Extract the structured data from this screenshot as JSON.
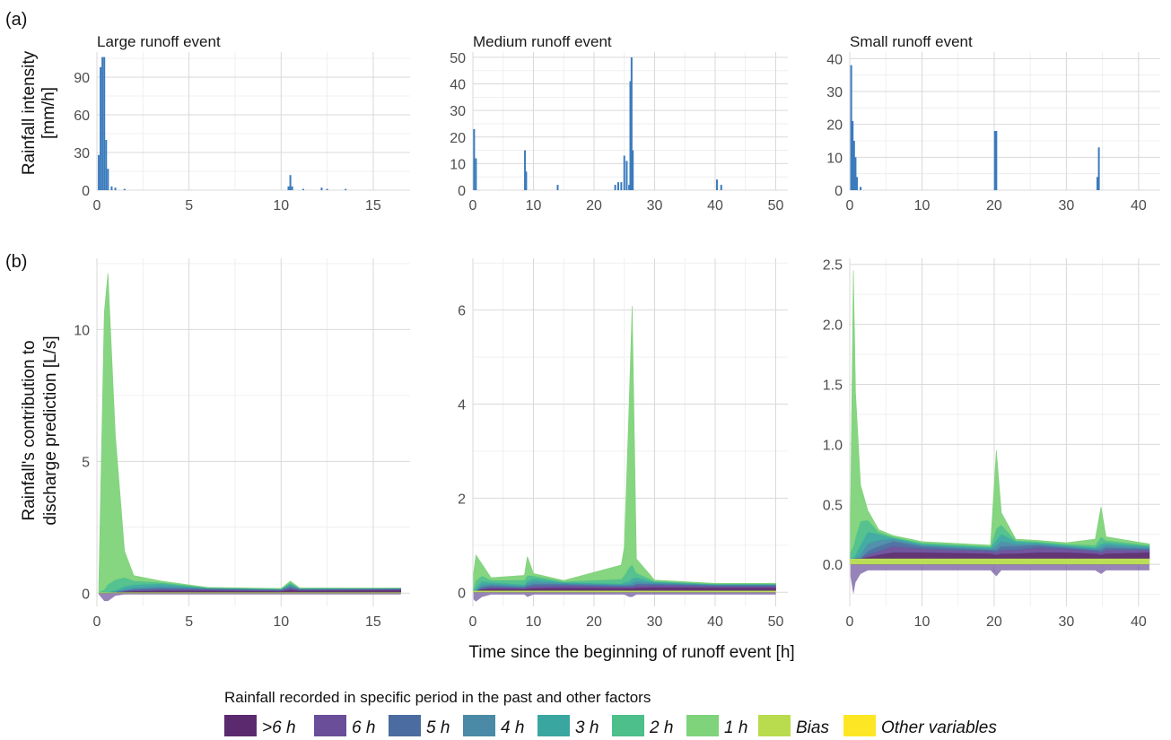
{
  "figure": {
    "tag_a": "(a)",
    "tag_b": "(b)",
    "row_a_ylabel_line1": "Rainfall intensity",
    "row_a_ylabel_line2": "[mm/h]",
    "row_b_ylabel_line1": "Rainfall's contribution to",
    "row_b_ylabel_line2": "discharge prediction [L/s]",
    "shared_xlabel": "Time since the beginning of runoff event [h]"
  },
  "colors": {
    "rain_bar": "#3a7bbd",
    "gt6h": "#5b2a6e",
    "h6": "#6a4e9a",
    "h5": "#4a6ca0",
    "h4": "#4a8aa6",
    "h3": "#3aa6a0",
    "h2": "#4cbf8a",
    "h1": "#7fd37a",
    "bias": "#b8dc4e",
    "other": "#fde725"
  },
  "legend": {
    "title": "Rainfall recorded in specific period in the past and other factors",
    "items": [
      {
        "label": ">6 h",
        "color": "#5b2a6e"
      },
      {
        "label": "6 h",
        "color": "#6a4e9a"
      },
      {
        "label": "5 h",
        "color": "#4a6ca0"
      },
      {
        "label": "4 h",
        "color": "#4a8aa6"
      },
      {
        "label": "3 h",
        "color": "#3aa6a0"
      },
      {
        "label": "2 h",
        "color": "#4cbf8a"
      },
      {
        "label": "1 h",
        "color": "#7fd37a"
      },
      {
        "label": "Bias",
        "color": "#b8dc4e"
      },
      {
        "label": "Other variables",
        "color": "#fde725"
      }
    ]
  },
  "chart_data": [
    {
      "type": "bar",
      "title": "Large runoff event",
      "ylabel": "Rainfall intensity [mm/h]",
      "xlim": [
        0,
        17
      ],
      "ylim": [
        0,
        110
      ],
      "xticks": [
        0,
        5,
        10,
        15
      ],
      "yticks": [
        0,
        30,
        60,
        90
      ],
      "x": [
        0.1,
        0.2,
        0.3,
        0.4,
        0.5,
        0.6,
        0.8,
        1.0,
        1.5,
        10.4,
        10.5,
        10.6,
        11.2,
        12.2,
        12.5,
        13.5
      ],
      "values": [
        28,
        98,
        106,
        106,
        40,
        17,
        3,
        2,
        1,
        3,
        12,
        3,
        1,
        2,
        1,
        1
      ]
    },
    {
      "type": "bar",
      "title": "Medium runoff event",
      "ylabel": "Rainfall intensity [mm/h]",
      "xlim": [
        0,
        52
      ],
      "ylim": [
        0,
        52
      ],
      "xticks": [
        0,
        10,
        20,
        30,
        40,
        50
      ],
      "yticks": [
        0,
        10,
        20,
        30,
        40,
        50
      ],
      "x": [
        0.2,
        0.5,
        8.6,
        8.8,
        14.0,
        23.5,
        24.0,
        24.5,
        25.0,
        25.4,
        25.8,
        26.0,
        26.2,
        26.4,
        40.3,
        41.0
      ],
      "values": [
        23,
        12,
        15,
        7,
        2,
        2,
        3,
        3,
        13,
        11,
        2,
        41,
        50,
        15,
        4,
        2
      ]
    },
    {
      "type": "bar",
      "title": "Small runoff event",
      "ylabel": "Rainfall intensity [mm/h]",
      "xlim": [
        0,
        43
      ],
      "ylim": [
        0,
        42
      ],
      "xticks": [
        0,
        10,
        20,
        30,
        40
      ],
      "yticks": [
        0,
        10,
        20,
        30,
        40
      ],
      "x": [
        0.2,
        0.4,
        0.6,
        0.8,
        1.0,
        1.5,
        20.1,
        20.3,
        34.3,
        34.5
      ],
      "values": [
        38,
        21,
        15,
        10,
        4,
        1,
        18,
        18,
        4,
        13
      ]
    },
    {
      "type": "area",
      "ylabel": "Rainfall's contribution to discharge prediction [L/s]",
      "xlabel": "Time since the beginning of runoff event [h]",
      "xlim": [
        0,
        17
      ],
      "ylim": [
        -0.5,
        12.7
      ],
      "xticks": [
        0,
        5,
        10,
        15
      ],
      "yticks": [
        0,
        5,
        10
      ],
      "x": [
        0.1,
        0.4,
        0.6,
        1.0,
        1.5,
        2.0,
        3.5,
        6.0,
        10.0,
        10.5,
        11.0,
        16.5
      ],
      "series": [
        {
          "name": ">6 h",
          "values": [
            0,
            0,
            0,
            0,
            0.02,
            0.04,
            0.06,
            0.06,
            0.04,
            0.1,
            0.06,
            0.08
          ]
        },
        {
          "name": "6 h",
          "values": [
            0,
            0,
            0,
            0,
            0.02,
            0.04,
            0.05,
            0.04,
            0.03,
            0.05,
            0.03,
            0.03
          ]
        },
        {
          "name": "5 h",
          "values": [
            0,
            0,
            0,
            0,
            0.02,
            0.03,
            0.05,
            0.03,
            0.02,
            0.05,
            0.02,
            0.02
          ]
        },
        {
          "name": "4 h",
          "values": [
            0,
            0,
            0,
            0.02,
            0.05,
            0.05,
            0.06,
            0.02,
            0.02,
            0.06,
            0.02,
            0.01
          ]
        },
        {
          "name": "3 h",
          "values": [
            0,
            0,
            0,
            0.05,
            0.1,
            0.12,
            0.1,
            0.01,
            0.01,
            0.06,
            0.01,
            0.01
          ]
        },
        {
          "name": "2 h",
          "values": [
            0,
            0.1,
            0.3,
            0.4,
            0.35,
            0.15,
            0.05,
            0.01,
            0.01,
            0.05,
            0.01,
            0
          ]
        },
        {
          "name": "1 h",
          "values": [
            0.2,
            10.5,
            11.8,
            5.5,
            1.0,
            0.2,
            0.05,
            0.01,
            0.01,
            0.05,
            0.01,
            0
          ]
        },
        {
          "name": "Bias",
          "values": [
            0.04,
            0.04,
            0.04,
            0.04,
            0.04,
            0.04,
            0.04,
            0.04,
            0.04,
            0.04,
            0.04,
            0.04
          ]
        },
        {
          "name": "Other variables",
          "values": [
            -0.05,
            -0.3,
            -0.3,
            -0.1,
            -0.05,
            -0.05,
            -0.05,
            -0.05,
            -0.05,
            -0.05,
            -0.05,
            -0.05
          ]
        }
      ]
    },
    {
      "type": "area",
      "ylabel": "Rainfall's contribution to discharge prediction [L/s]",
      "xlabel": "Time since the beginning of runoff event [h]",
      "xlim": [
        0,
        52
      ],
      "ylim": [
        -0.3,
        7.1
      ],
      "xticks": [
        0,
        10,
        20,
        30,
        40,
        50
      ],
      "yticks": [
        0,
        2,
        4,
        6
      ],
      "x": [
        0.1,
        0.5,
        1.5,
        3.0,
        8.5,
        9.0,
        10.0,
        15.0,
        24.5,
        25.0,
        25.8,
        26.3,
        27.0,
        30.0,
        40.0,
        50.0
      ],
      "series": [
        {
          "name": ">6 h",
          "values": [
            0,
            0,
            0.02,
            0.04,
            0.03,
            0.04,
            0.05,
            0.06,
            0.05,
            0.05,
            0.05,
            0.05,
            0.06,
            0.07,
            0.06,
            0.06
          ]
        },
        {
          "name": "6 h",
          "values": [
            0,
            0,
            0.02,
            0.03,
            0.02,
            0.03,
            0.04,
            0.04,
            0.03,
            0.03,
            0.03,
            0.03,
            0.04,
            0.04,
            0.03,
            0.03
          ]
        },
        {
          "name": "5 h",
          "values": [
            0,
            0,
            0.03,
            0.03,
            0.02,
            0.03,
            0.04,
            0.03,
            0.02,
            0.02,
            0.02,
            0.02,
            0.04,
            0.03,
            0.02,
            0.02
          ]
        },
        {
          "name": "4 h",
          "values": [
            0,
            0,
            0.04,
            0.03,
            0.02,
            0.04,
            0.05,
            0.02,
            0.02,
            0.02,
            0.03,
            0.05,
            0.05,
            0.02,
            0.01,
            0.01
          ]
        },
        {
          "name": "3 h",
          "values": [
            0,
            0.05,
            0.08,
            0.04,
            0.03,
            0.06,
            0.07,
            0.02,
            0.02,
            0.05,
            0.06,
            0.1,
            0.08,
            0.02,
            0.01,
            0.01
          ]
        },
        {
          "name": "2 h",
          "values": [
            0.05,
            0.15,
            0.12,
            0.05,
            0.1,
            0.12,
            0.06,
            0.02,
            0.1,
            0.15,
            0.3,
            0.3,
            0.1,
            0.02,
            0.01,
            0.01
          ]
        },
        {
          "name": "1 h",
          "values": [
            0.3,
            0.55,
            0.25,
            0.05,
            0.1,
            0.4,
            0.05,
            0.02,
            0.3,
            0.6,
            3.5,
            5.5,
            0.3,
            0.02,
            0.01,
            0.01
          ]
        },
        {
          "name": "Bias",
          "values": [
            0.04,
            0.04,
            0.04,
            0.04,
            0.04,
            0.04,
            0.04,
            0.04,
            0.04,
            0.04,
            0.04,
            0.04,
            0.04,
            0.04,
            0.04,
            0.04
          ]
        },
        {
          "name": "Other variables",
          "values": [
            -0.15,
            -0.2,
            -0.1,
            -0.05,
            -0.05,
            -0.1,
            -0.05,
            -0.05,
            -0.05,
            -0.05,
            -0.1,
            -0.1,
            -0.05,
            -0.05,
            -0.05,
            -0.05
          ]
        }
      ]
    },
    {
      "type": "area",
      "ylabel": "Rainfall's contribution to discharge prediction [L/s]",
      "xlabel": "Time since the beginning of runoff event [h]",
      "xlim": [
        0,
        43
      ],
      "ylim": [
        -0.35,
        2.55
      ],
      "xticks": [
        0,
        10,
        20,
        30,
        40
      ],
      "yticks": [
        0.0,
        0.5,
        1.0,
        1.5,
        2.0,
        2.5
      ],
      "x": [
        0.1,
        0.5,
        0.8,
        1.5,
        2.5,
        4.0,
        6.0,
        10.0,
        19.5,
        20.3,
        21.0,
        23.0,
        26.0,
        30.0,
        34.0,
        34.8,
        35.5,
        41.5
      ],
      "series": [
        {
          "name": ">6 h",
          "values": [
            0,
            0,
            0,
            0,
            0.01,
            0.03,
            0.05,
            0.05,
            0.04,
            0.03,
            0.04,
            0.04,
            0.05,
            0.05,
            0.04,
            0.03,
            0.04,
            0.05
          ]
        },
        {
          "name": "6 h",
          "values": [
            0,
            0,
            0,
            0,
            0.02,
            0.03,
            0.05,
            0.03,
            0.02,
            0.02,
            0.03,
            0.03,
            0.04,
            0.03,
            0.02,
            0.02,
            0.03,
            0.02
          ]
        },
        {
          "name": "5 h",
          "values": [
            0,
            0,
            0,
            0,
            0.03,
            0.04,
            0.04,
            0.02,
            0.01,
            0.02,
            0.03,
            0.03,
            0.02,
            0.01,
            0.01,
            0.02,
            0.02,
            0.01
          ]
        },
        {
          "name": "4 h",
          "values": [
            0,
            0,
            0,
            0.03,
            0.06,
            0.05,
            0.02,
            0.01,
            0.01,
            0.03,
            0.04,
            0.02,
            0.01,
            0.01,
            0.01,
            0.02,
            0.02,
            0.01
          ]
        },
        {
          "name": "3 h",
          "values": [
            0,
            0,
            0.03,
            0.08,
            0.1,
            0.05,
            0.01,
            0.01,
            0.01,
            0.05,
            0.06,
            0.02,
            0.01,
            0.01,
            0.01,
            0.03,
            0.02,
            0.01
          ]
        },
        {
          "name": "2 h",
          "values": [
            0.05,
            0.1,
            0.15,
            0.2,
            0.1,
            0.02,
            0.01,
            0.01,
            0.01,
            0.1,
            0.08,
            0.01,
            0.01,
            0.01,
            0.02,
            0.06,
            0.02,
            0.01
          ]
        },
        {
          "name": "1 h",
          "values": [
            0.3,
            2.3,
            1.2,
            0.3,
            0.08,
            0.02,
            0.01,
            0.01,
            0.01,
            0.65,
            0.1,
            0.01,
            0.01,
            0.01,
            0.05,
            0.25,
            0.03,
            0.01
          ]
        },
        {
          "name": "Bias",
          "values": [
            0.05,
            0.05,
            0.05,
            0.05,
            0.05,
            0.05,
            0.05,
            0.05,
            0.05,
            0.05,
            0.05,
            0.05,
            0.05,
            0.05,
            0.05,
            0.05,
            0.05,
            0.05
          ]
        },
        {
          "name": "Other variables",
          "values": [
            -0.1,
            -0.25,
            -0.15,
            -0.08,
            -0.05,
            -0.05,
            -0.05,
            -0.05,
            -0.05,
            -0.1,
            -0.05,
            -0.05,
            -0.05,
            -0.05,
            -0.05,
            -0.08,
            -0.05,
            -0.05
          ]
        }
      ]
    }
  ]
}
